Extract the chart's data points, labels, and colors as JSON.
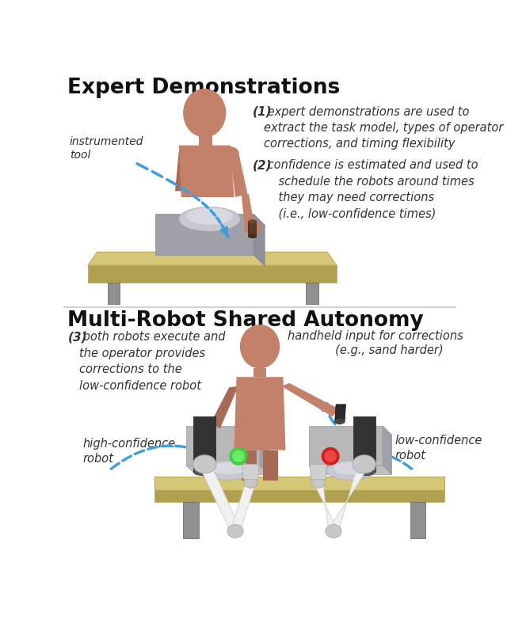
{
  "title1": "Expert Demonstrations",
  "title2": "Multi-Robot Shared Autonomy",
  "ann1_bold": "(1)",
  "ann1_text": " expert demonstrations are used to\nextract the task model, types of operator\ncorrections, and timing flexibility",
  "ann2_bold": "(2)",
  "ann2_text": " confidence is estimated and used to\n    schedule the robots around times\n    they may need corrections\n    (i.e., low-confidence times)",
  "ann3_bold": "(3)",
  "ann3_text": " both robots execute and\nthe operator provides\ncorrections to the\nlow-confidence robot",
  "label_instrumented": "instrumented\ntool",
  "label_handheld": "handheld input for corrections\n             (e.g., sand harder)",
  "label_high_conf": "high-confidence\nrobot",
  "label_low_conf": "low-confidence\nrobot",
  "arrow_color": "#3a9ee0",
  "title_color": "#111111",
  "text_color": "#333333",
  "bg_color": "#ffffff",
  "skin_color": "#c4816a",
  "skin_dark": "#a86a55",
  "table_color": "#d4c878",
  "table_edge": "#b8a855",
  "table_dark": "#b0a050",
  "metal_light": "#e8e8e8",
  "metal_mid": "#c0c0c0",
  "metal_dark": "#888888",
  "robot_base_dark": "#3a3a3a",
  "wood_color": "#c8a84a",
  "wp_color": "#b8b8b8",
  "wp_inner": "#d0d0d8"
}
